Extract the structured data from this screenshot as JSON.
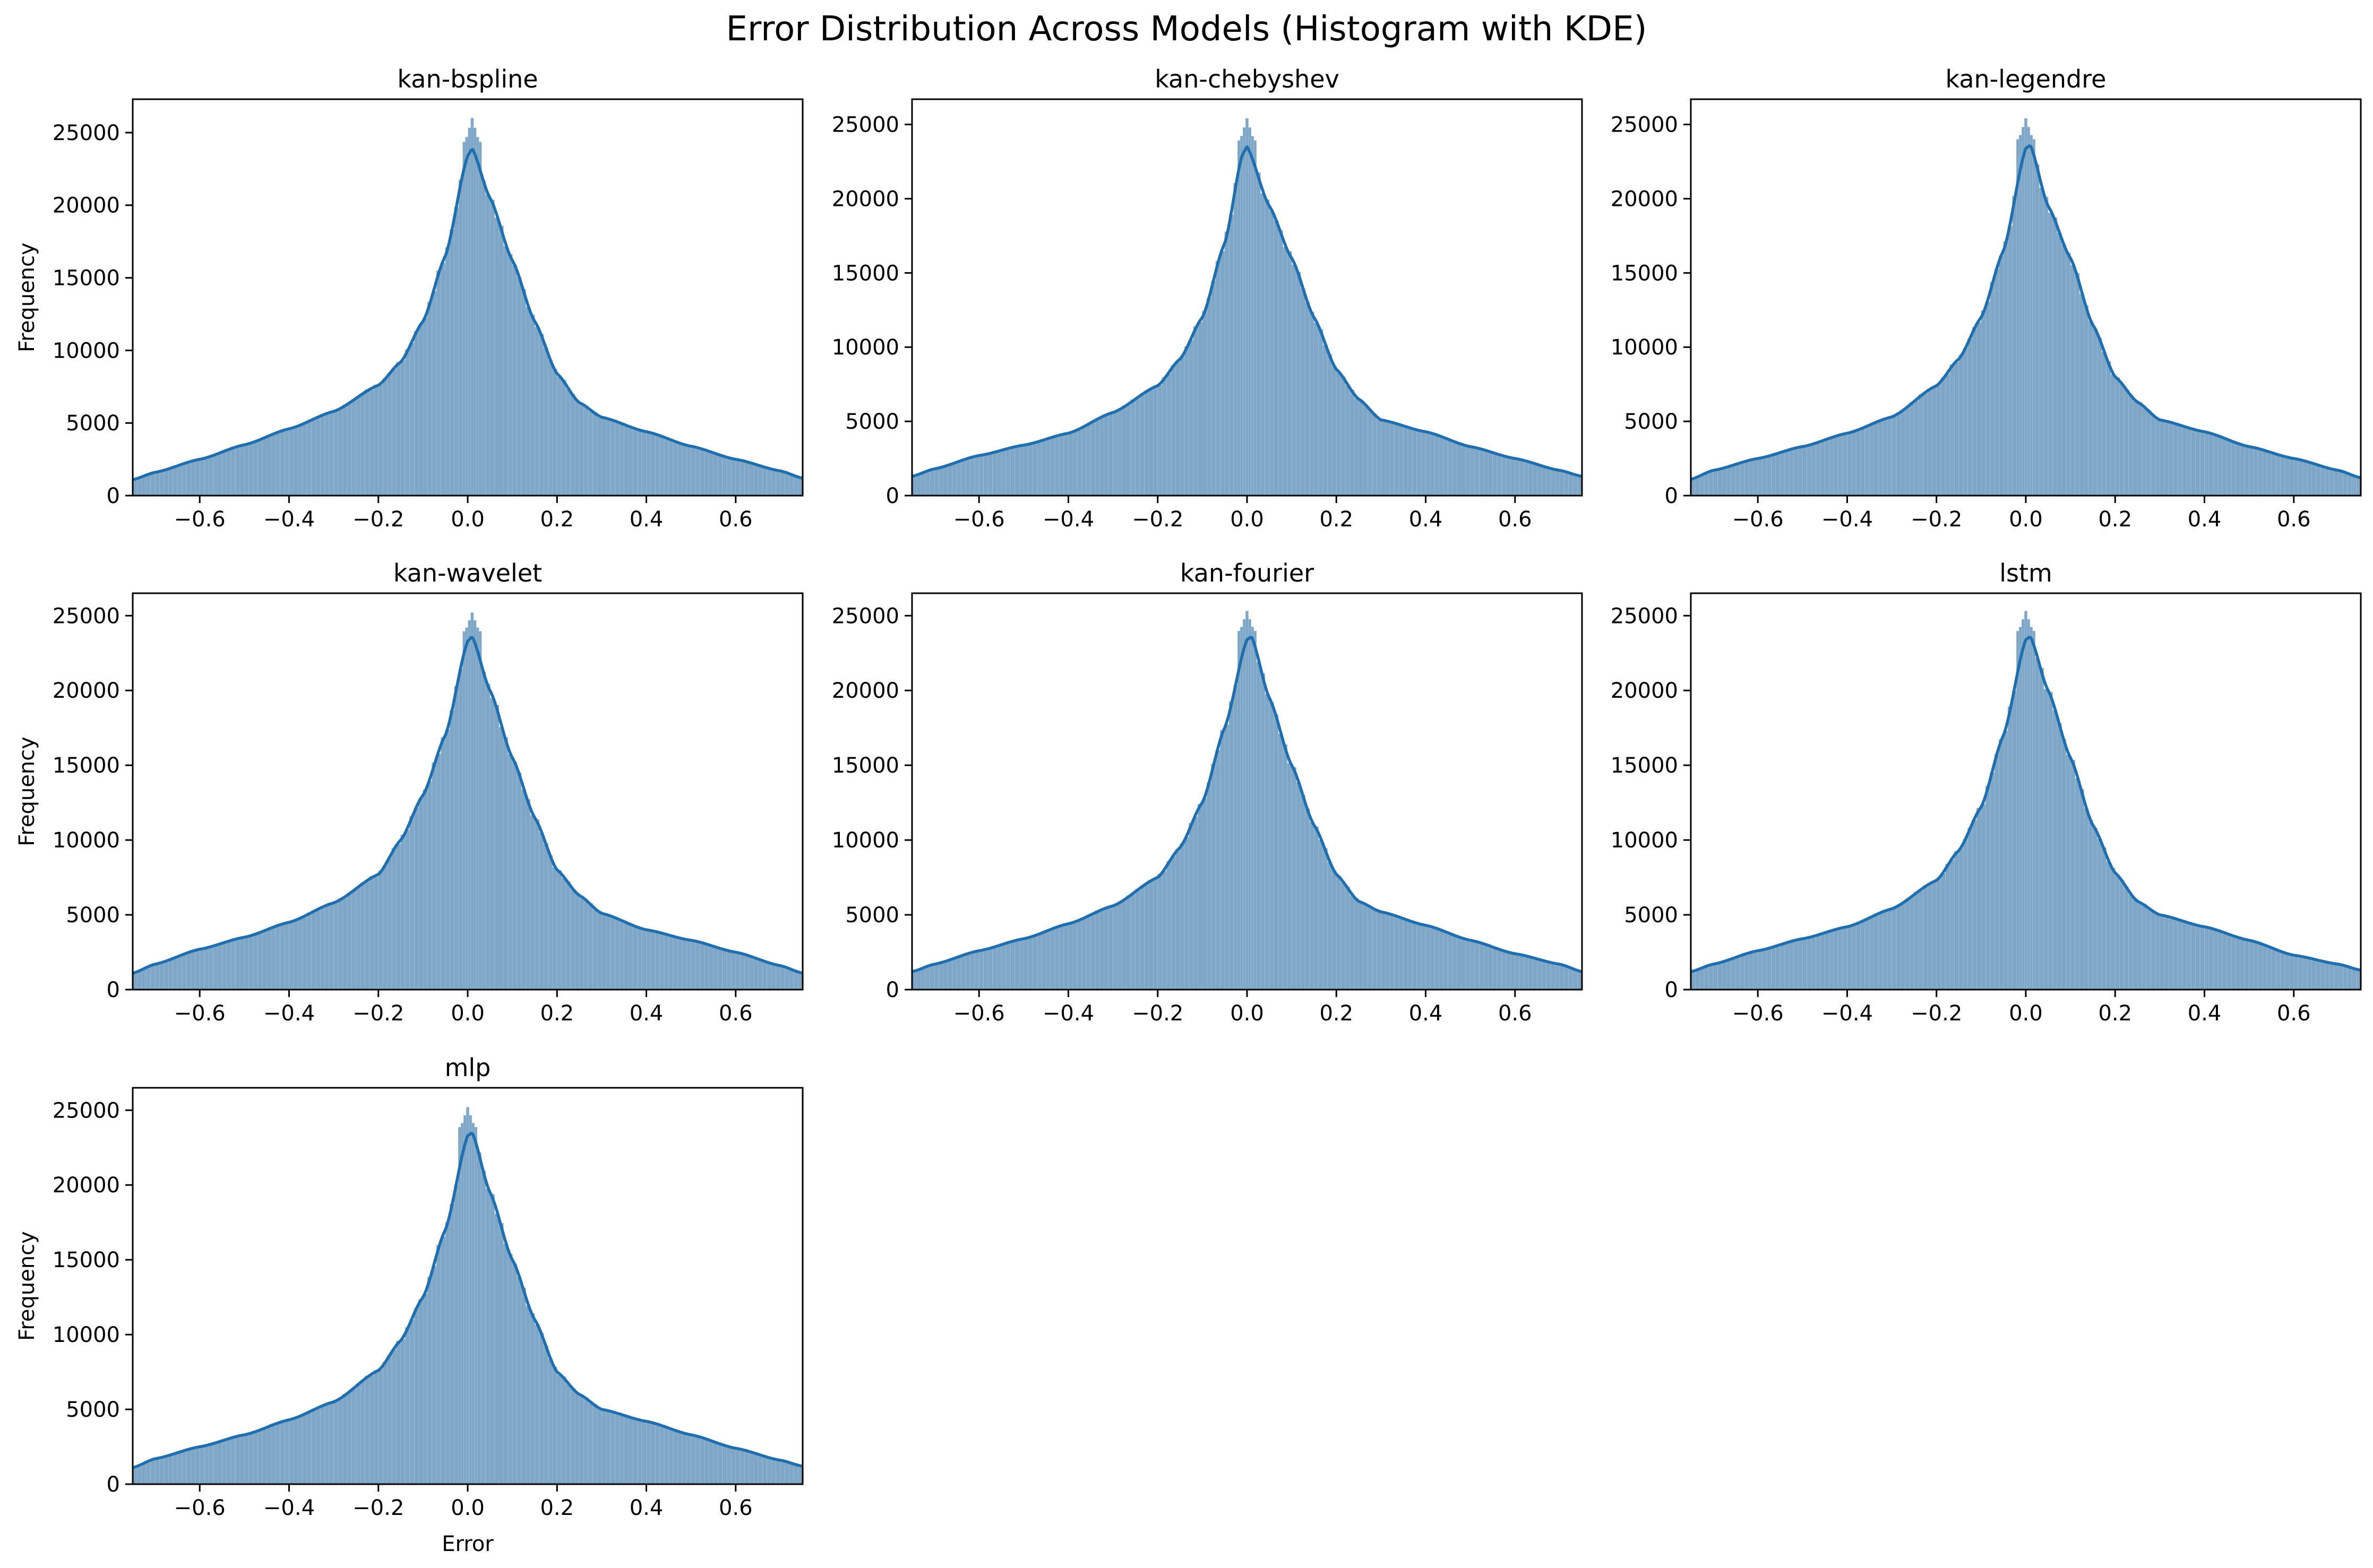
{
  "figure": {
    "title": "Error Distribution Across Models (Histogram with KDE)"
  },
  "colors": {
    "bar_fill": "#7ea6c6",
    "bar_edge": "#9dbad3",
    "kde_line": "#1f6eb0",
    "axes_frame": "#000000",
    "background": "#ffffff"
  },
  "chart_data": [
    {
      "type": "bar",
      "title": "kan-bspline",
      "xlabel": "",
      "ylabel": "Frequency",
      "xlim": [
        -0.75,
        0.75
      ],
      "ylim": [
        0,
        27300
      ],
      "xticks": [
        -0.6,
        -0.4,
        -0.2,
        0.0,
        0.2,
        0.4,
        0.6
      ],
      "xtick_labels": [
        "−0.6",
        "−0.4",
        "−0.2",
        "0.0",
        "0.2",
        "0.4",
        "0.6"
      ],
      "yticks": [
        0,
        5000,
        10000,
        15000,
        20000,
        25000
      ],
      "ytick_labels": [
        "0",
        "5000",
        "10000",
        "15000",
        "20000",
        "25000"
      ],
      "grid": false,
      "series": [
        {
          "name": "",
          "kind": "histogram",
          "peak_x": 0.01,
          "peak_max": 26000,
          "kde_peak": 23900,
          "x": [
            -0.75,
            -0.7,
            -0.6,
            -0.5,
            -0.4,
            -0.3,
            -0.2,
            -0.15,
            -0.1,
            -0.05,
            0.0,
            0.01,
            0.05,
            0.1,
            0.15,
            0.2,
            0.25,
            0.3,
            0.4,
            0.5,
            0.6,
            0.7,
            0.75
          ],
          "values": [
            1100,
            1600,
            2500,
            3500,
            4600,
            5800,
            7600,
            9200,
            12000,
            16500,
            23400,
            23900,
            20500,
            16200,
            12000,
            8400,
            6400,
            5400,
            4400,
            3400,
            2500,
            1700,
            1200
          ]
        }
      ]
    },
    {
      "type": "bar",
      "title": "kan-chebyshev",
      "xlabel": "",
      "ylabel": "",
      "xlim": [
        -0.75,
        0.75
      ],
      "ylim": [
        0,
        26700
      ],
      "xticks": [
        -0.6,
        -0.4,
        -0.2,
        0.0,
        0.2,
        0.4,
        0.6
      ],
      "xtick_labels": [
        "−0.6",
        "−0.4",
        "−0.2",
        "0.0",
        "0.2",
        "0.4",
        "0.6"
      ],
      "yticks": [
        0,
        5000,
        10000,
        15000,
        20000,
        25000
      ],
      "ytick_labels": [
        "0",
        "5000",
        "10000",
        "15000",
        "20000",
        "25000"
      ],
      "grid": false,
      "series": [
        {
          "name": "",
          "kind": "histogram",
          "peak_x": 0.0,
          "peak_max": 25400,
          "kde_peak": 23500,
          "x": [
            -0.75,
            -0.7,
            -0.6,
            -0.5,
            -0.4,
            -0.3,
            -0.2,
            -0.15,
            -0.1,
            -0.05,
            -0.01,
            0.0,
            0.05,
            0.1,
            0.15,
            0.2,
            0.25,
            0.3,
            0.4,
            0.5,
            0.6,
            0.7,
            0.75
          ],
          "values": [
            1300,
            1800,
            2700,
            3400,
            4200,
            5600,
            7400,
            9200,
            12000,
            17000,
            23000,
            23500,
            19500,
            16000,
            12000,
            8500,
            6500,
            5100,
            4300,
            3300,
            2500,
            1700,
            1300
          ]
        }
      ]
    },
    {
      "type": "bar",
      "title": "kan-legendre",
      "xlabel": "",
      "ylabel": "",
      "xlim": [
        -0.75,
        0.75
      ],
      "ylim": [
        0,
        26700
      ],
      "xticks": [
        -0.6,
        -0.4,
        -0.2,
        0.0,
        0.2,
        0.4,
        0.6
      ],
      "xtick_labels": [
        "−0.6",
        "−0.4",
        "−0.2",
        "0.0",
        "0.2",
        "0.4",
        "0.6"
      ],
      "yticks": [
        0,
        5000,
        10000,
        15000,
        20000,
        25000
      ],
      "ytick_labels": [
        "0",
        "5000",
        "10000",
        "15000",
        "20000",
        "25000"
      ],
      "grid": false,
      "series": [
        {
          "name": "",
          "kind": "histogram",
          "peak_x": 0.0,
          "peak_max": 25400,
          "kde_peak": 23600,
          "x": [
            -0.75,
            -0.7,
            -0.6,
            -0.5,
            -0.4,
            -0.3,
            -0.2,
            -0.15,
            -0.1,
            -0.05,
            0.0,
            0.01,
            0.05,
            0.1,
            0.15,
            0.2,
            0.25,
            0.3,
            0.4,
            0.5,
            0.6,
            0.7,
            0.75
          ],
          "values": [
            1100,
            1700,
            2500,
            3300,
            4200,
            5300,
            7400,
            9200,
            12000,
            16500,
            23400,
            23600,
            19500,
            16000,
            11500,
            8000,
            6300,
            5100,
            4300,
            3300,
            2500,
            1700,
            1200
          ]
        }
      ]
    },
    {
      "type": "bar",
      "title": "kan-wavelet",
      "xlabel": "",
      "ylabel": "Frequency",
      "xlim": [
        -0.75,
        0.75
      ],
      "ylim": [
        0,
        26500
      ],
      "xticks": [
        -0.6,
        -0.4,
        -0.2,
        0.0,
        0.2,
        0.4,
        0.6
      ],
      "xtick_labels": [
        "−0.6",
        "−0.4",
        "−0.2",
        "0.0",
        "0.2",
        "0.4",
        "0.6"
      ],
      "yticks": [
        0,
        5000,
        10000,
        15000,
        20000,
        25000
      ],
      "ytick_labels": [
        "0",
        "5000",
        "10000",
        "15000",
        "20000",
        "25000"
      ],
      "grid": false,
      "series": [
        {
          "name": "",
          "kind": "histogram",
          "peak_x": 0.01,
          "peak_max": 25200,
          "kde_peak": 23600,
          "x": [
            -0.75,
            -0.7,
            -0.6,
            -0.5,
            -0.4,
            -0.3,
            -0.2,
            -0.15,
            -0.1,
            -0.05,
            0.0,
            0.01,
            0.05,
            0.1,
            0.15,
            0.2,
            0.25,
            0.3,
            0.4,
            0.5,
            0.6,
            0.7,
            0.75
          ],
          "values": [
            1100,
            1700,
            2700,
            3500,
            4500,
            5800,
            7700,
            10000,
            13000,
            17000,
            23300,
            23600,
            20000,
            15500,
            11500,
            8000,
            6300,
            5100,
            4000,
            3300,
            2500,
            1600,
            1100
          ]
        }
      ]
    },
    {
      "type": "bar",
      "title": "kan-fourier",
      "xlabel": "",
      "ylabel": "",
      "xlim": [
        -0.75,
        0.75
      ],
      "ylim": [
        0,
        26500
      ],
      "xticks": [
        -0.6,
        -0.4,
        -0.2,
        0.0,
        0.2,
        0.4,
        0.6
      ],
      "xtick_labels": [
        "−0.6",
        "−0.4",
        "−0.2",
        "0.0",
        "0.2",
        "0.4",
        "0.6"
      ],
      "yticks": [
        0,
        5000,
        10000,
        15000,
        20000,
        25000
      ],
      "ytick_labels": [
        "0",
        "5000",
        "10000",
        "15000",
        "20000",
        "25000"
      ],
      "grid": false,
      "series": [
        {
          "name": "",
          "kind": "histogram",
          "peak_x": 0.0,
          "peak_max": 25300,
          "kde_peak": 23600,
          "x": [
            -0.75,
            -0.7,
            -0.6,
            -0.5,
            -0.4,
            -0.3,
            -0.2,
            -0.15,
            -0.1,
            -0.05,
            0.0,
            0.01,
            0.05,
            0.1,
            0.15,
            0.2,
            0.25,
            0.3,
            0.4,
            0.5,
            0.6,
            0.7,
            0.75
          ],
          "values": [
            1200,
            1700,
            2600,
            3400,
            4400,
            5600,
            7500,
            9500,
            12500,
            17500,
            23400,
            23600,
            19500,
            15000,
            11000,
            7700,
            5900,
            5200,
            4300,
            3300,
            2400,
            1700,
            1200
          ]
        }
      ]
    },
    {
      "type": "bar",
      "title": "lstm",
      "xlabel": "",
      "ylabel": "",
      "xlim": [
        -0.75,
        0.75
      ],
      "ylim": [
        0,
        26500
      ],
      "xticks": [
        -0.6,
        -0.4,
        -0.2,
        0.0,
        0.2,
        0.4,
        0.6
      ],
      "xtick_labels": [
        "−0.6",
        "−0.4",
        "−0.2",
        "0.0",
        "0.2",
        "0.4",
        "0.6"
      ],
      "yticks": [
        0,
        5000,
        10000,
        15000,
        20000,
        25000
      ],
      "ytick_labels": [
        "0",
        "5000",
        "10000",
        "15000",
        "20000",
        "25000"
      ],
      "grid": false,
      "series": [
        {
          "name": "",
          "kind": "histogram",
          "peak_x": 0.0,
          "peak_max": 25300,
          "kde_peak": 23600,
          "x": [
            -0.75,
            -0.7,
            -0.6,
            -0.5,
            -0.4,
            -0.3,
            -0.2,
            -0.15,
            -0.1,
            -0.05,
            0.0,
            0.01,
            0.05,
            0.1,
            0.15,
            0.2,
            0.25,
            0.3,
            0.4,
            0.5,
            0.6,
            0.7,
            0.75
          ],
          "values": [
            1200,
            1700,
            2600,
            3400,
            4200,
            5400,
            7300,
            9300,
            12200,
            17000,
            23400,
            23600,
            20000,
            15500,
            11000,
            7800,
            5900,
            5000,
            4200,
            3300,
            2300,
            1700,
            1300
          ]
        }
      ]
    },
    {
      "type": "bar",
      "title": "mlp",
      "xlabel": "Error",
      "ylabel": "Frequency",
      "xlim": [
        -0.75,
        0.75
      ],
      "ylim": [
        0,
        26500
      ],
      "xticks": [
        -0.6,
        -0.4,
        -0.2,
        0.0,
        0.2,
        0.4,
        0.6
      ],
      "xtick_labels": [
        "−0.6",
        "−0.4",
        "−0.2",
        "0.0",
        "0.2",
        "0.4",
        "0.6"
      ],
      "yticks": [
        0,
        5000,
        10000,
        15000,
        20000,
        25000
      ],
      "ytick_labels": [
        "0",
        "5000",
        "10000",
        "15000",
        "20000",
        "25000"
      ],
      "grid": false,
      "series": [
        {
          "name": "",
          "kind": "histogram",
          "peak_x": 0.0,
          "peak_max": 25200,
          "kde_peak": 23500,
          "x": [
            -0.75,
            -0.7,
            -0.6,
            -0.5,
            -0.4,
            -0.3,
            -0.2,
            -0.15,
            -0.1,
            -0.05,
            0.0,
            0.01,
            0.05,
            0.1,
            0.15,
            0.2,
            0.25,
            0.3,
            0.4,
            0.5,
            0.6,
            0.7,
            0.75
          ],
          "values": [
            1100,
            1700,
            2500,
            3300,
            4300,
            5500,
            7600,
            9600,
            12500,
            17000,
            23300,
            23500,
            19500,
            15000,
            11000,
            7500,
            6000,
            5000,
            4200,
            3300,
            2400,
            1600,
            1200
          ]
        }
      ]
    }
  ]
}
